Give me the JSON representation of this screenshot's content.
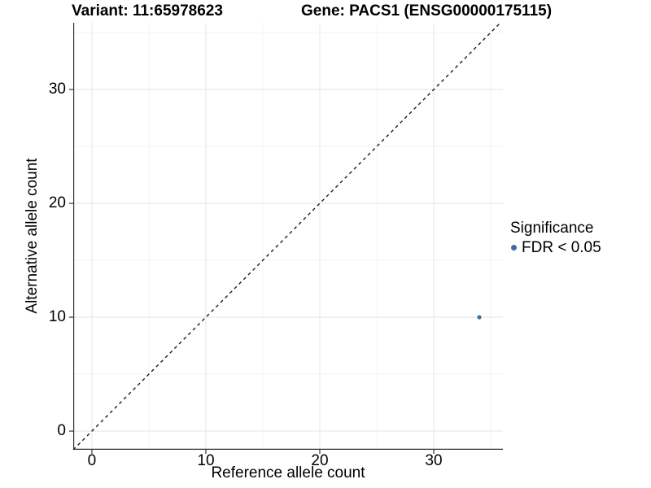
{
  "chart_data": {
    "type": "scatter",
    "title_variant": "Variant: 11:65978623",
    "title_gene": "Gene: PACS1 (ENSG00000175115)",
    "xlabel": "Reference allele count",
    "ylabel": "Alternative allele count",
    "x_ticks": [
      0,
      10,
      20,
      30
    ],
    "y_ticks": [
      0,
      10,
      20,
      30
    ],
    "x_minor_ticks": [
      5,
      15,
      25,
      35
    ],
    "y_minor_ticks": [
      5,
      15,
      25,
      35
    ],
    "xlim": [
      -1.64,
      36.07
    ],
    "ylim": [
      -1.64,
      35.86
    ],
    "grid": true,
    "points": [
      {
        "x": 34,
        "y": 10,
        "series": "FDR < 0.05"
      }
    ],
    "identity_line": {
      "equation": "y = x",
      "style": "dashed"
    },
    "legend": {
      "position": "right",
      "title": "Significance",
      "items": [
        {
          "label": "FDR < 0.05",
          "color": "#3d6da4"
        }
      ]
    },
    "colors": {
      "point": "#3d6da4",
      "grid_major": "#e7e7e7",
      "grid_minor": "#f3f3f3",
      "axis_line": "#333333",
      "dashed_line": "#1a1a1a",
      "text": "#000000"
    }
  }
}
